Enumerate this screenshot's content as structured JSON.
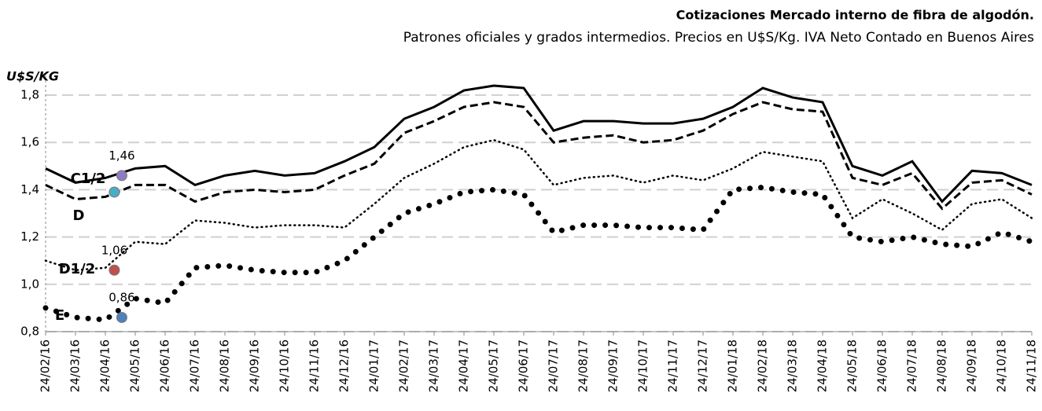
{
  "chart_data": {
    "type": "line",
    "title": "Cotizaciones Mercado interno de fibra de algodón.",
    "subtitle": "Patrones oficiales y grados intermedios. Precios en U$S/Kg. IVA Neto Contado en Buenos Aires",
    "y_label": "U$S/KG",
    "categories": [
      "24/02/16",
      "24/03/16",
      "24/04/16",
      "24/05/16",
      "24/06/16",
      "24/07/16",
      "24/08/16",
      "24/09/16",
      "24/10/16",
      "24/11/16",
      "24/12/16",
      "24/01/17",
      "24/02/17",
      "24/03/17",
      "24/04/17",
      "24/05/17",
      "24/06/17",
      "24/07/17",
      "24/08/17",
      "24/09/17",
      "24/10/17",
      "24/11/17",
      "24/12/17",
      "24/01/18",
      "24/02/18",
      "24/03/18",
      "24/04/18",
      "24/05/18",
      "24/06/18",
      "24/07/18",
      "24/08/18",
      "24/09/18",
      "24/10/18",
      "24/11/18"
    ],
    "series": [
      {
        "name": "C1/2",
        "color": "#000000",
        "style": "solid",
        "values": [
          1.49,
          1.43,
          1.45,
          1.49,
          1.5,
          1.42,
          1.46,
          1.48,
          1.46,
          1.47,
          1.52,
          1.58,
          1.7,
          1.75,
          1.82,
          1.84,
          1.83,
          1.65,
          1.69,
          1.69,
          1.68,
          1.68,
          1.7,
          1.75,
          1.83,
          1.79,
          1.77,
          1.5,
          1.46,
          1.52,
          1.35,
          1.48,
          1.47,
          1.42
        ]
      },
      {
        "name": "D",
        "color": "#000000",
        "style": "dashed",
        "values": [
          1.42,
          1.36,
          1.37,
          1.42,
          1.42,
          1.35,
          1.39,
          1.4,
          1.39,
          1.4,
          1.46,
          1.51,
          1.64,
          1.69,
          1.75,
          1.77,
          1.75,
          1.6,
          1.62,
          1.63,
          1.6,
          1.61,
          1.65,
          1.72,
          1.77,
          1.74,
          1.73,
          1.45,
          1.42,
          1.47,
          1.32,
          1.43,
          1.44,
          1.38
        ]
      },
      {
        "name": "D1/2",
        "color": "#000000",
        "style": "dotted",
        "values": [
          1.1,
          1.06,
          1.07,
          1.18,
          1.17,
          1.27,
          1.26,
          1.24,
          1.25,
          1.25,
          1.24,
          1.34,
          1.45,
          1.51,
          1.58,
          1.61,
          1.57,
          1.42,
          1.45,
          1.46,
          1.43,
          1.46,
          1.44,
          1.49,
          1.56,
          1.54,
          1.52,
          1.28,
          1.36,
          1.3,
          1.23,
          1.34,
          1.36,
          1.28
        ]
      },
      {
        "name": "E",
        "color": "#000000",
        "style": "dots",
        "values": [
          0.9,
          0.86,
          0.85,
          0.94,
          0.92,
          1.07,
          1.08,
          1.06,
          1.05,
          1.05,
          1.1,
          1.2,
          1.3,
          1.34,
          1.39,
          1.4,
          1.38,
          1.22,
          1.25,
          1.25,
          1.24,
          1.24,
          1.23,
          1.4,
          1.41,
          1.39,
          1.38,
          1.2,
          1.18,
          1.2,
          1.17,
          1.16,
          1.22,
          1.18
        ]
      }
    ],
    "highlights": [
      {
        "series": 0,
        "value": 1.46,
        "label": "1,46",
        "color": "#8e7cc3"
      },
      {
        "series": 1,
        "value": 1.39,
        "color": "#4bacc6"
      },
      {
        "series": 2,
        "value": 1.06,
        "label": "1,06",
        "color": "#c0504d"
      },
      {
        "series": 3,
        "value": 0.86,
        "label": "0,86",
        "color": "#4f81bd"
      }
    ],
    "ylim": [
      0.8,
      1.85
    ],
    "yticks": [
      {
        "value": 0.8,
        "label": "0,8"
      },
      {
        "value": 1.0,
        "label": "1,0"
      },
      {
        "value": 1.2,
        "label": "1,2"
      },
      {
        "value": 1.4,
        "label": "1,4"
      },
      {
        "value": 1.6,
        "label": "1,6"
      },
      {
        "value": 1.8,
        "label": "1,8"
      }
    ],
    "grid": true
  }
}
